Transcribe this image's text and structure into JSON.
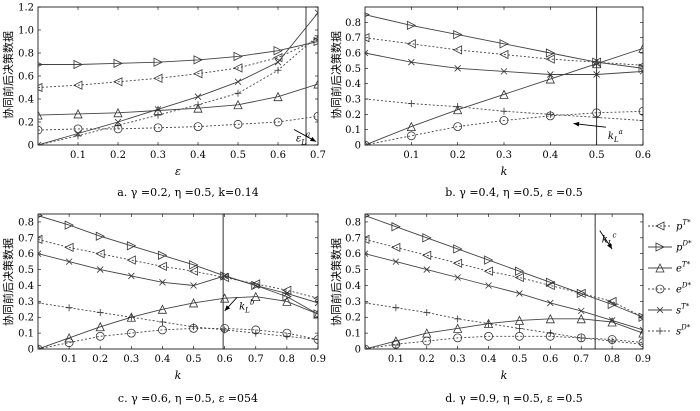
{
  "figure": {
    "y_label": "协同前后决策数据"
  },
  "legend": {
    "placement": "right of panel d",
    "entries": [
      {
        "text": "p^{T*}",
        "series": "pT"
      },
      {
        "text": "p^{D*}",
        "series": "pD"
      },
      {
        "text": "e^{T*}",
        "series": "eT"
      },
      {
        "text": "e^{D*}",
        "series": "eD"
      },
      {
        "text": "s^{T*}",
        "series": "sT"
      },
      {
        "text": "s^{D*}",
        "series": "sD"
      }
    ]
  },
  "chart_data": [
    {
      "type": "line",
      "panel": "a",
      "caption": "a.   γ =0.2,  η =0.5,  k=0.14",
      "xlabel": "ε",
      "ylabel": "协同前后决策数据",
      "xlim": [
        0,
        0.7
      ],
      "ylim": [
        0,
        1.2
      ],
      "x_ticks": [
        "0.1",
        "0.2",
        "0.3",
        "0.4",
        "0.5",
        "0.6",
        "0.7"
      ],
      "y_ticks": [
        "0",
        "0.2",
        "0.4",
        "0.6",
        "0.8",
        "1.0",
        "1.2"
      ],
      "grid": false,
      "x": [
        0,
        0.1,
        0.2,
        0.3,
        0.4,
        0.5,
        0.6,
        0.7
      ],
      "series": [
        {
          "key": "pT",
          "values": [
            0.5,
            0.52,
            0.55,
            0.58,
            0.62,
            0.67,
            0.76,
            0.92
          ]
        },
        {
          "key": "pD",
          "values": [
            0.7,
            0.7,
            0.71,
            0.72,
            0.74,
            0.77,
            0.82,
            0.9
          ]
        },
        {
          "key": "eT",
          "values": [
            0.26,
            0.27,
            0.28,
            0.3,
            0.32,
            0.35,
            0.42,
            0.53
          ]
        },
        {
          "key": "eD",
          "values": [
            0.13,
            0.14,
            0.14,
            0.15,
            0.16,
            0.18,
            0.2,
            0.25
          ]
        },
        {
          "key": "sT",
          "values": [
            0.0,
            0.1,
            0.2,
            0.31,
            0.42,
            0.55,
            0.72,
            1.15
          ]
        },
        {
          "key": "sD",
          "values": [
            0.0,
            0.08,
            0.17,
            0.26,
            0.35,
            0.45,
            0.65,
            0.95
          ]
        }
      ],
      "vline": 0.67,
      "annotation": {
        "text": "ε_L^a",
        "at": [
          0.64,
          0.1
        ],
        "arrow_to": [
          0.695,
          0.03
        ]
      }
    },
    {
      "type": "line",
      "panel": "b",
      "caption": "b.   γ =0.4,  η =0.5,  ε =0.5",
      "xlabel": "k",
      "ylabel": "协同前后决策数据",
      "xlim": [
        0,
        0.6
      ],
      "ylim": [
        0,
        0.9
      ],
      "x_ticks": [
        "0.1",
        "0.2",
        "0.3",
        "0.4",
        "0.5",
        "0.6"
      ],
      "y_ticks": [
        "0",
        "0.1",
        "0.2",
        "0.3",
        "0.4",
        "0.5",
        "0.6",
        "0.7",
        "0.8"
      ],
      "grid": false,
      "x": [
        0,
        0.1,
        0.2,
        0.3,
        0.4,
        0.5,
        0.6
      ],
      "series": [
        {
          "key": "pD",
          "values": [
            0.85,
            0.78,
            0.72,
            0.66,
            0.6,
            0.54,
            0.5
          ]
        },
        {
          "key": "pT",
          "values": [
            0.7,
            0.66,
            0.62,
            0.59,
            0.56,
            0.54,
            0.52
          ]
        },
        {
          "key": "sT",
          "values": [
            0.6,
            0.54,
            0.5,
            0.48,
            0.46,
            0.46,
            0.48
          ]
        },
        {
          "key": "eT",
          "values": [
            0.0,
            0.12,
            0.23,
            0.33,
            0.43,
            0.53,
            0.63
          ]
        },
        {
          "key": "sD",
          "values": [
            0.3,
            0.27,
            0.25,
            0.22,
            0.2,
            0.18,
            0.16
          ]
        },
        {
          "key": "eD",
          "values": [
            0.0,
            0.06,
            0.12,
            0.16,
            0.19,
            0.21,
            0.22
          ]
        }
      ],
      "vline": 0.5,
      "annotation": {
        "text": "k_L^a",
        "at": [
          0.52,
          0.09
        ],
        "arrow_to": [
          0.45,
          0.14
        ]
      }
    },
    {
      "type": "line",
      "panel": "c",
      "caption": "c.   γ =0.6,  η =0.5,  ε =054",
      "xlabel": "k",
      "ylabel": "协同前后决策数据",
      "xlim": [
        0,
        0.9
      ],
      "ylim": [
        0,
        0.85
      ],
      "x_ticks": [
        "0.1",
        "0.2",
        "0.3",
        "0.4",
        "0.5",
        "0.6",
        "0.7",
        "0.8",
        "0.9"
      ],
      "y_ticks": [
        "0",
        "0.1",
        "0.2",
        "0.3",
        "0.4",
        "0.5",
        "0.6",
        "0.7",
        "0.8"
      ],
      "grid": false,
      "x": [
        0,
        0.1,
        0.2,
        0.3,
        0.4,
        0.5,
        0.6,
        0.7,
        0.8,
        0.9
      ],
      "series": [
        {
          "key": "pD",
          "values": [
            0.84,
            0.78,
            0.71,
            0.65,
            0.59,
            0.53,
            0.46,
            0.4,
            0.33,
            0.22
          ]
        },
        {
          "key": "pT",
          "values": [
            0.69,
            0.64,
            0.6,
            0.56,
            0.52,
            0.49,
            0.45,
            0.41,
            0.37,
            0.32
          ]
        },
        {
          "key": "sT",
          "values": [
            0.6,
            0.55,
            0.5,
            0.46,
            0.42,
            0.4,
            0.46,
            0.4,
            0.35,
            0.29
          ]
        },
        {
          "key": "eT",
          "values": [
            0.0,
            0.07,
            0.14,
            0.2,
            0.25,
            0.29,
            0.32,
            0.33,
            0.3,
            0.22
          ]
        },
        {
          "key": "sD",
          "values": [
            0.29,
            0.26,
            0.23,
            0.2,
            0.17,
            0.14,
            0.12,
            0.1,
            0.08,
            0.06
          ]
        },
        {
          "key": "eD",
          "values": [
            0.0,
            0.04,
            0.08,
            0.1,
            0.12,
            0.13,
            0.13,
            0.12,
            0.1,
            0.06
          ]
        }
      ],
      "vline": 0.595,
      "annotation": {
        "text": "k_L^b",
        "at": [
          0.64,
          0.3
        ],
        "arrow_to": [
          0.6,
          0.24
        ]
      }
    },
    {
      "type": "line",
      "panel": "d",
      "caption": "d.   γ =0.9,  η =0.5,  ε =0.5",
      "xlabel": "k",
      "ylabel": "协同前后决策数据",
      "xlim": [
        0,
        0.9
      ],
      "ylim": [
        0,
        0.85
      ],
      "x_ticks": [
        "0.1",
        "0.2",
        "0.3",
        "0.4",
        "0.5",
        "0.6",
        "0.7",
        "0.8",
        "0.9"
      ],
      "y_ticks": [
        "0",
        "0.1",
        "0.2",
        "0.3",
        "0.4",
        "0.5",
        "0.6",
        "0.7",
        "0.8"
      ],
      "grid": false,
      "x": [
        0,
        0.1,
        0.2,
        0.3,
        0.4,
        0.5,
        0.6,
        0.7,
        0.8,
        0.9
      ],
      "series": [
        {
          "key": "pD",
          "values": [
            0.84,
            0.77,
            0.7,
            0.63,
            0.56,
            0.49,
            0.42,
            0.35,
            0.28,
            0.2
          ]
        },
        {
          "key": "pT",
          "values": [
            0.69,
            0.64,
            0.59,
            0.54,
            0.49,
            0.45,
            0.4,
            0.35,
            0.3,
            0.2
          ]
        },
        {
          "key": "sT",
          "values": [
            0.6,
            0.55,
            0.5,
            0.45,
            0.4,
            0.35,
            0.29,
            0.24,
            0.18,
            0.12
          ]
        },
        {
          "key": "eT",
          "values": [
            0.0,
            0.05,
            0.1,
            0.13,
            0.16,
            0.18,
            0.19,
            0.19,
            0.17,
            0.1
          ]
        },
        {
          "key": "sD",
          "values": [
            0.29,
            0.26,
            0.23,
            0.19,
            0.16,
            0.13,
            0.1,
            0.07,
            0.05,
            0.03
          ]
        },
        {
          "key": "eD",
          "values": [
            0.0,
            0.03,
            0.05,
            0.07,
            0.08,
            0.08,
            0.08,
            0.07,
            0.06,
            0.04
          ]
        }
      ],
      "vline": 0.745,
      "annotation": {
        "text": "k_L^c",
        "at": [
          0.76,
          0.72
        ],
        "arrow_to": [
          0.8,
          0.63
        ]
      }
    }
  ]
}
